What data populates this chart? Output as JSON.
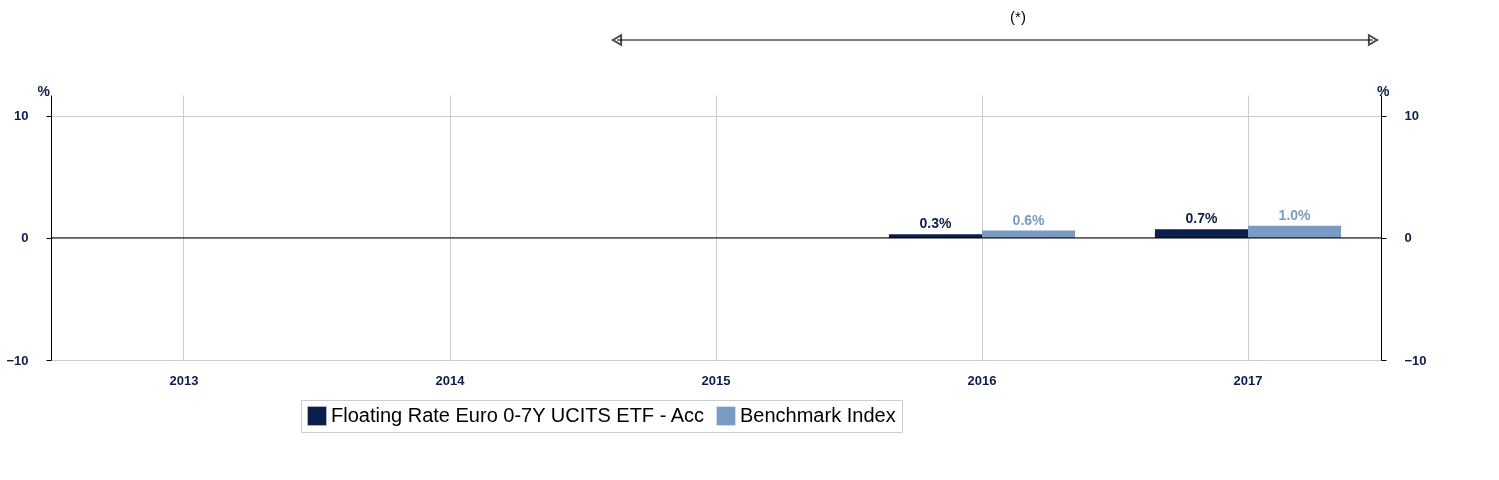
{
  "chart_data": {
    "type": "bar",
    "categories": [
      "2013",
      "2014",
      "2015",
      "2016",
      "2017"
    ],
    "series": [
      {
        "name": "Floating Rate Euro 0-7Y UCITS ETF - Acc",
        "color": "#0b1f4b",
        "values": [
          null,
          null,
          null,
          0.3,
          0.7
        ],
        "value_labels": [
          null,
          null,
          null,
          "0.3%",
          "0.7%"
        ]
      },
      {
        "name": "Benchmark Index",
        "color": "#7a9cc2",
        "values": [
          null,
          null,
          null,
          0.6,
          1.0
        ],
        "value_labels": [
          null,
          null,
          null,
          "0.6%",
          "1.0%"
        ]
      }
    ],
    "ylim": [
      -10,
      11.7
    ],
    "yticks": [
      -10,
      0,
      10
    ],
    "ylabel": "%",
    "y2lim": [
      -10,
      11.7
    ],
    "y2ticks": [
      -10,
      0,
      10
    ],
    "y2label": "%",
    "ref_lines": [
      {
        "axis": "y",
        "value": 0,
        "color": "#000000"
      }
    ],
    "annotations": [
      "(*)"
    ],
    "grid": true,
    "legend": "bottom"
  }
}
